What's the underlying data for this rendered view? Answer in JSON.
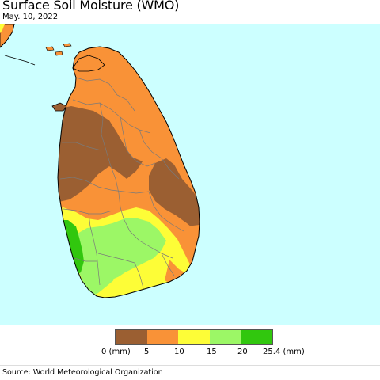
{
  "header": {
    "title": "Surface Soil Moisture (WMO)",
    "date": "May. 10, 2022"
  },
  "legend": {
    "colors": [
      "#9b5f32",
      "#f99237",
      "#fdfd37",
      "#9cf766",
      "#31c70e"
    ],
    "labels": [
      "0 (mm)",
      "5",
      "10",
      "15",
      "20",
      "25.4 (mm)"
    ]
  },
  "footer": {
    "source": "Source: World Meteorological Organization"
  },
  "colors": {
    "ocean": "#ccffff",
    "boundary": "#7a7a7a"
  }
}
